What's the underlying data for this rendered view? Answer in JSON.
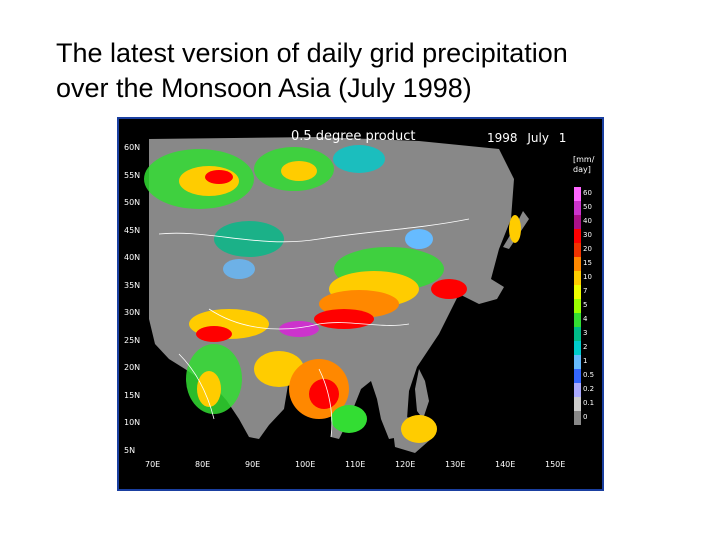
{
  "slide": {
    "title_line1": "The latest version of daily grid precipitation",
    "title_line2": "over the Monsoon Asia (July 1998)"
  },
  "map": {
    "product_label": "0.5 degree product",
    "date_label": "1998 July 1",
    "unit_label_line1": "[mm/",
    "unit_label_line2": "day]",
    "lat_labels": [
      "60N",
      "55N",
      "50N",
      "45N",
      "40N",
      "35N",
      "30N",
      "25N",
      "20N",
      "15N",
      "10N",
      "5N"
    ],
    "lon_labels": [
      "70E",
      "80E",
      "90E",
      "100E",
      "110E",
      "120E",
      "130E",
      "140E",
      "150E"
    ],
    "colorbar": [
      {
        "label": "60",
        "color": "#ff66ff"
      },
      {
        "label": "50",
        "color": "#cc33cc"
      },
      {
        "label": "40",
        "color": "#aa1188"
      },
      {
        "label": "30",
        "color": "#ff0000"
      },
      {
        "label": "20",
        "color": "#ee3300"
      },
      {
        "label": "15",
        "color": "#ff8800"
      },
      {
        "label": "10",
        "color": "#ffcc00"
      },
      {
        "label": "7",
        "color": "#eeff00"
      },
      {
        "label": "5",
        "color": "#99ff00"
      },
      {
        "label": "4",
        "color": "#33dd33"
      },
      {
        "label": "3",
        "color": "#00bb88"
      },
      {
        "label": "2",
        "color": "#00cccc"
      },
      {
        "label": "1",
        "color": "#66bbff"
      },
      {
        "label": "0.5",
        "color": "#3366ff"
      },
      {
        "label": "0.2",
        "color": "#aaaaff"
      },
      {
        "label": "0.1",
        "color": "#cccccc"
      },
      {
        "label": "0",
        "color": "#888888"
      }
    ],
    "colors": {
      "background": "#000000",
      "no_rain_land": "#888888",
      "frame": "#1a3fa0"
    }
  }
}
